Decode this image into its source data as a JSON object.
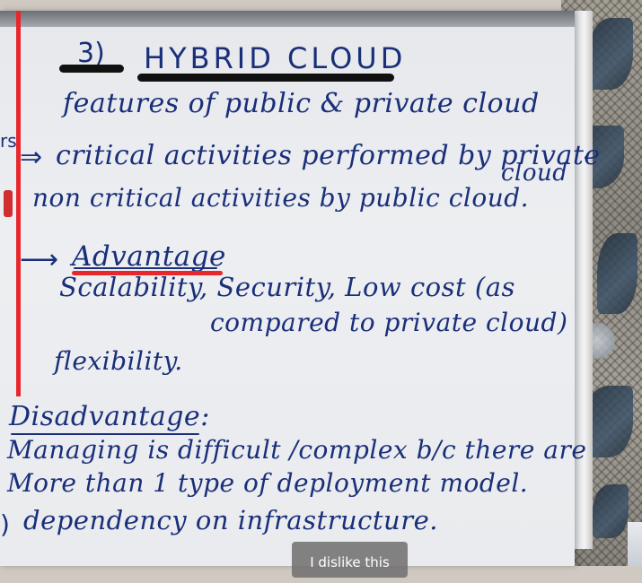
{
  "heading": {
    "number": "3)",
    "title": "HYBRID CLOUD"
  },
  "lines": {
    "features": "features of public & private cloud",
    "margin_fragment": "rs",
    "critical": "critical activities performed by private",
    "critical_cloud": "cloud",
    "noncritical": "non critical activities by public cloud.",
    "advantage_heading": "Advantage",
    "advantage_items": "Scalability, Security, Low cost (as",
    "advantage_items_cont": "compared to private cloud)",
    "flexibility": "flexibility.",
    "disadvantage_heading": "Disadvantage:",
    "disadv1": "Managing is difficult /complex b/c there are",
    "disadv2": "More than 1 type of deployment model.",
    "disadv3": "dependency on infrastructure."
  },
  "arrows": {
    "implies": "⇒",
    "right": "⟶",
    "partial": ")"
  },
  "overlay": {
    "tooltip": "I dislike this"
  },
  "colors": {
    "ink": "#1a2f7a",
    "margin_red": "#e8272c",
    "underline_black": "#111111"
  }
}
